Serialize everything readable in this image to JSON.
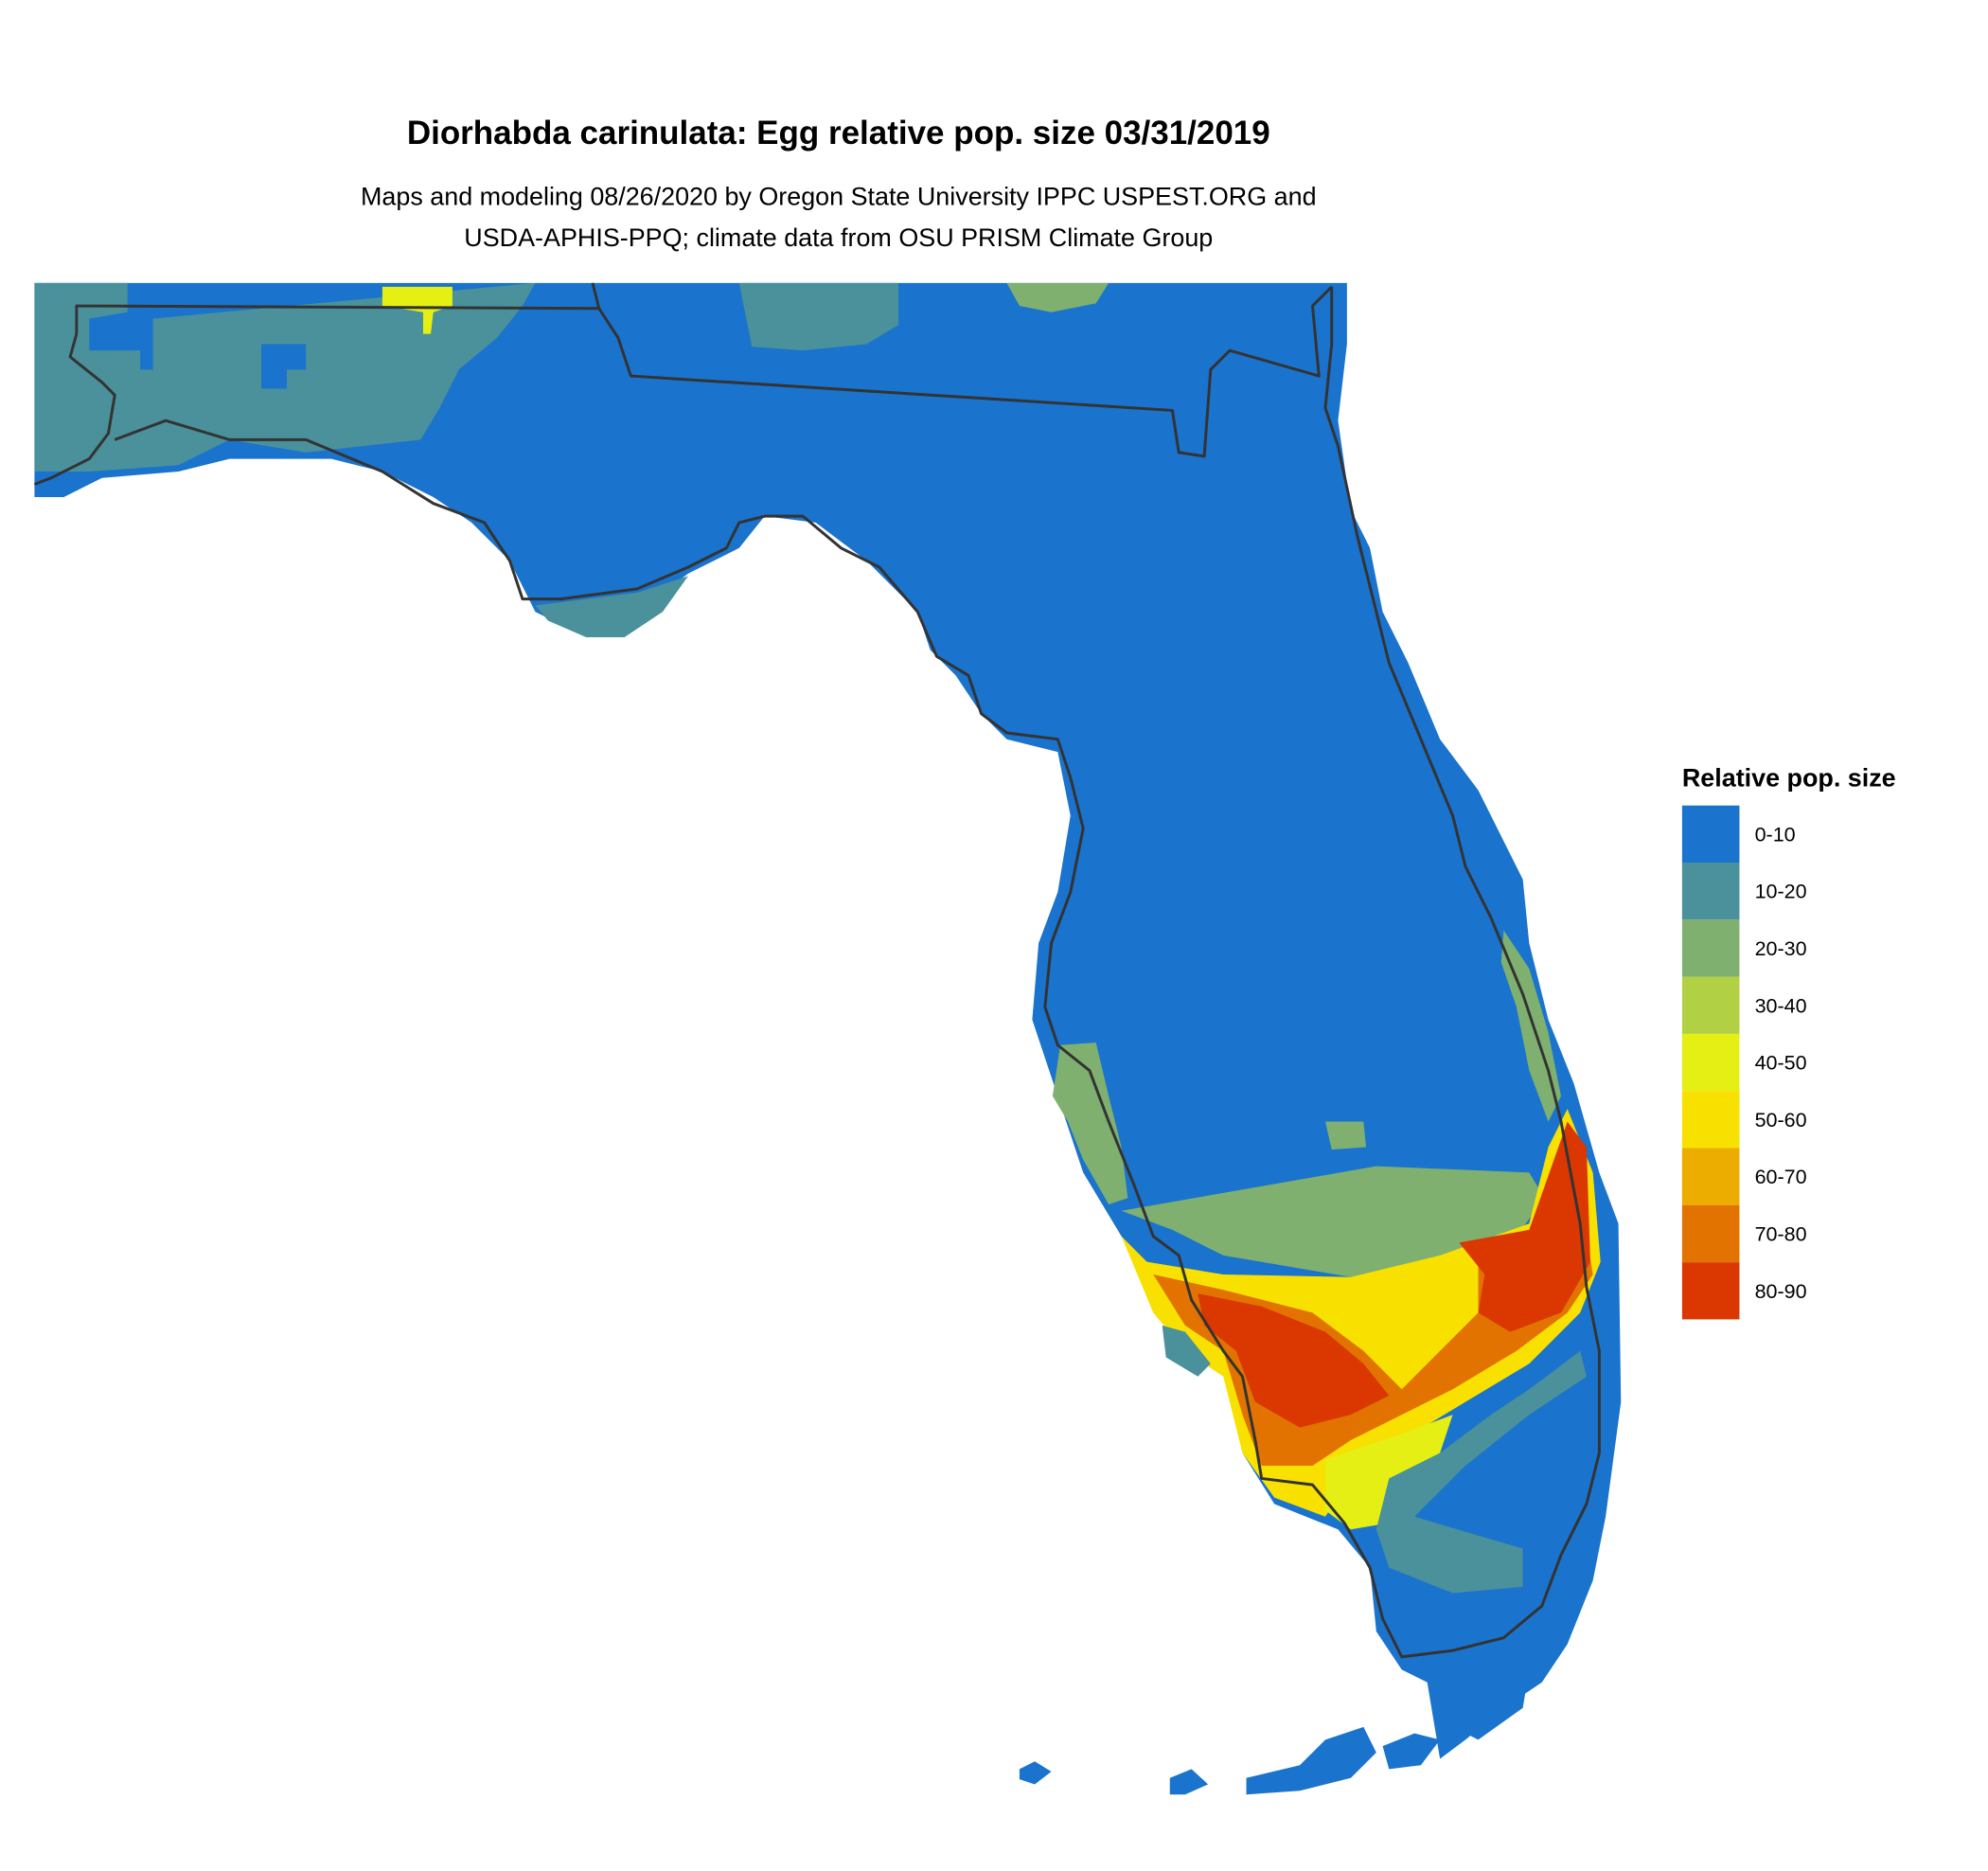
{
  "chart_data": {
    "type": "heatmap",
    "title": "Diorhabda carinulata: Egg relative pop. size 03/31/2019",
    "subtitle_lines": [
      "Maps and modeling 08/26/2020 by Oregon State University IPPC USPEST.ORG and",
      "USDA-APHIS-PPQ; climate data from OSU PRISM Climate Group"
    ],
    "region": "Florida",
    "legend": {
      "title": "Relative pop. size",
      "placement": "right",
      "bins": [
        {
          "label": "0-10",
          "color": "#1a73cc"
        },
        {
          "label": "10-20",
          "color": "#4a919b"
        },
        {
          "label": "20-30",
          "color": "#7fb070"
        },
        {
          "label": "30-40",
          "color": "#b2d043"
        },
        {
          "label": "40-50",
          "color": "#e5ef13"
        },
        {
          "label": "50-60",
          "color": "#f8e000"
        },
        {
          "label": "60-70",
          "color": "#edac00"
        },
        {
          "label": "70-80",
          "color": "#e27300"
        },
        {
          "label": "80-90",
          "color": "#db3700"
        }
      ]
    }
  }
}
